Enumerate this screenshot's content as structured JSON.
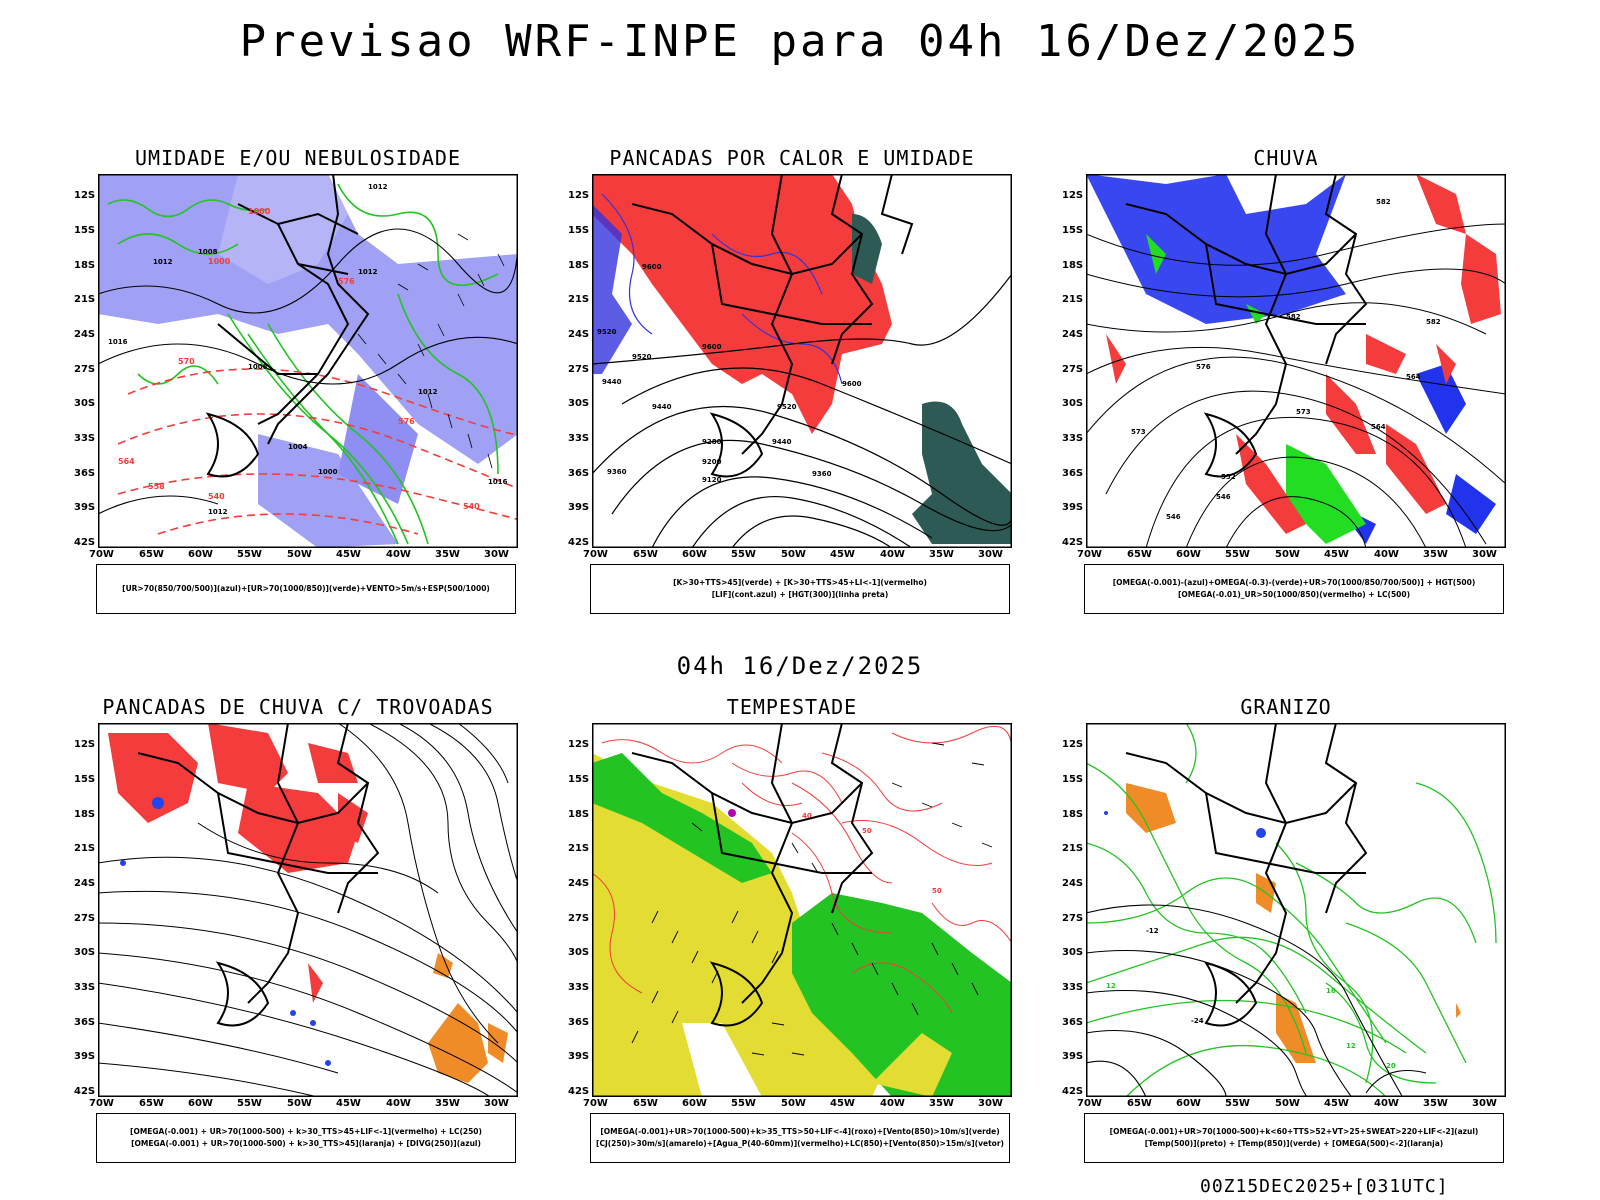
{
  "title": "Previsao WRF-INPE  para 04h 16/Dez/2025",
  "mid_date": "04h 16/Dez/2025",
  "footer": "00Z15DEC2025+[031UTC]",
  "lat_labels": [
    "12S",
    "15S",
    "18S",
    "21S",
    "24S",
    "27S",
    "30S",
    "33S",
    "36S",
    "39S",
    "42S"
  ],
  "lon_labels": [
    "70W",
    "65W",
    "60W",
    "55W",
    "50W",
    "45W",
    "40W",
    "35W",
    "30W"
  ],
  "colors": {
    "blue": "#6f6ff0",
    "green": "#22c322",
    "red": "#f43c3c",
    "orange": "#f08c28",
    "yellow": "#e3dc32",
    "darkteal": "#2d5a55",
    "purple": "#b400b4"
  },
  "panels": [
    {
      "id": "umidade",
      "title": "UMIDADE E/OU NEBULOSIDADE",
      "legend": [
        "[UR>70(850/700/500)](azul)+[UR>70(1000/850)](verde)+VENTO>5m/s+ESP(500/1000)"
      ],
      "contour_labels": [
        "1012",
        "1008",
        "1016",
        "1004",
        "1000",
        "576",
        "570",
        "564",
        "558",
        "552",
        "540",
        "546"
      ]
    },
    {
      "id": "pancadas",
      "title": "PANCADAS POR CALOR E UMIDADE",
      "legend": [
        "[K>30+TTS>45](verde) + [K>30+TTS>45+LI<-1](vermelho)",
        "[LIF](cont.azul) + [HGT(300)](linha preta)"
      ],
      "contour_labels": [
        "9600",
        "9520",
        "9440",
        "9360",
        "9280",
        "9200",
        "9120"
      ]
    },
    {
      "id": "chuva",
      "title": "CHUVA",
      "legend": [
        "[OMEGA(-0.001)-(azul)+OMEGA(-0.3)-(verde)+UR>70(1000/850/700/500)] + HGT(500)",
        "[OMEGA(-0.01)_UR>50(1000/850)(vermelho) + LC(500)"
      ],
      "contour_labels": [
        "582",
        "576",
        "573",
        "570",
        "564",
        "558",
        "552",
        "546"
      ]
    },
    {
      "id": "trovoadas",
      "title": "PANCADAS DE CHUVA C/ TROVOADAS",
      "legend": [
        "[OMEGA(-0.001) + UR>70(1000-500) + k>30_TTS>45+LIF<-1](vermelho) + LC(250)",
        "[OMEGA(-0.001) + UR>70(1000-500) + k>30_TTS>45](laranja) + [DIVG(250)](azul)"
      ],
      "contour_labels": []
    },
    {
      "id": "tempestade",
      "title": "TEMPESTADE",
      "legend": [
        "[OMEGA(-0.001)+UR>70(1000-500)+k>35_TTS>50+LIF<-4](roxo)+[Vento(850)>10m/s](verde)",
        "[CJ(250)>30m/s](amarelo)+[Agua_P(40-60mm)](vermelho)+LC(850)+[Vento(850)>15m/s](vetor)"
      ],
      "contour_labels": [
        "50",
        "40"
      ]
    },
    {
      "id": "granizo",
      "title": "GRANIZO",
      "legend": [
        "[OMEGA(-0.001)+UR>70(1000-500)+k<60+TTS>52+VT>25+SWEAT>220+LIF<-2](azul)",
        "[Temp(500)](preto) + [Temp(850)](verde) + [OMEGA(500)<-2](laranja)"
      ],
      "contour_labels": [
        "-24",
        "-12",
        "12",
        "16",
        "20"
      ]
    }
  ]
}
